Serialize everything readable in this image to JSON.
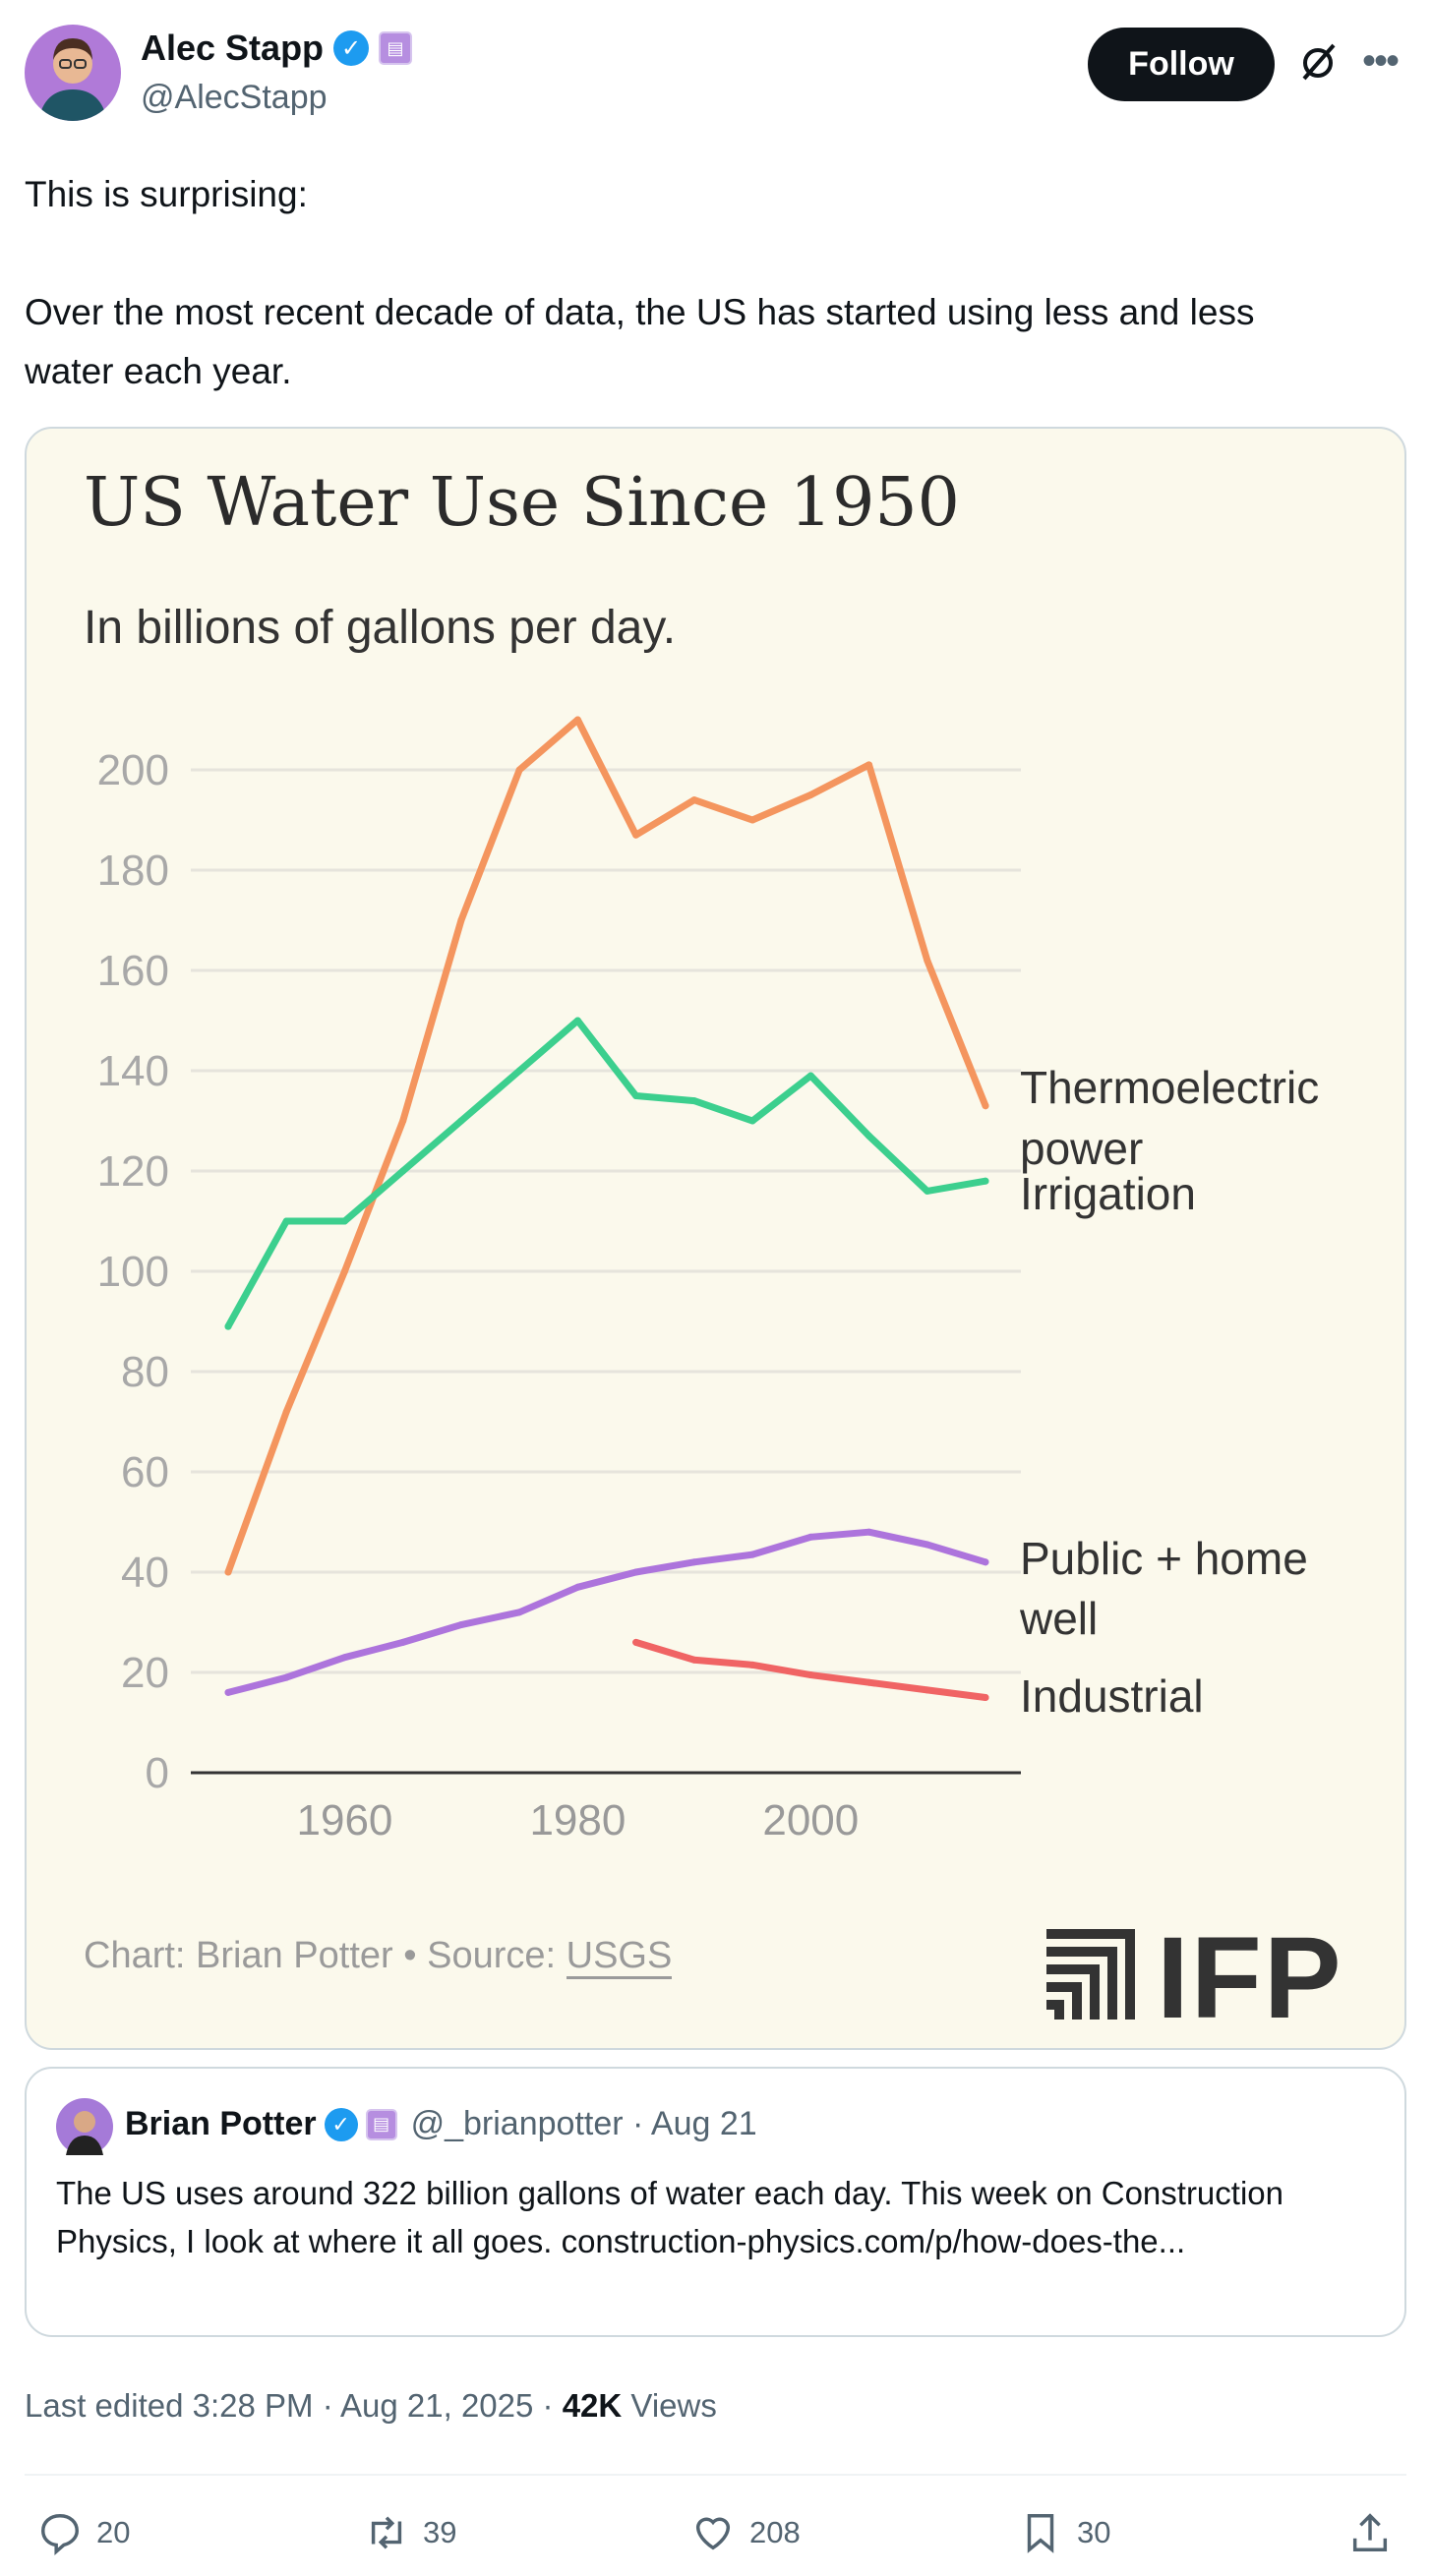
{
  "author": {
    "name": "Alec Stapp",
    "handle": "@AlecStapp",
    "follow_label": "Follow"
  },
  "tweet": {
    "line1": "This is surprising:",
    "line2": "Over the most recent decade of data, the US has started using less and less",
    "line3": "water each year."
  },
  "chart_data": {
    "type": "line",
    "title": "US Water Use Since 1950",
    "subtitle": "In billions of gallons per day.",
    "xlabel": "",
    "ylabel": "",
    "x": [
      1950,
      1955,
      1960,
      1965,
      1970,
      1975,
      1980,
      1985,
      1990,
      1995,
      2000,
      2005,
      2010,
      2015
    ],
    "xticks": [
      1960,
      1980,
      2000
    ],
    "yticks": [
      0,
      20,
      40,
      60,
      80,
      100,
      120,
      140,
      160,
      180,
      200
    ],
    "ylim": [
      0,
      210
    ],
    "xlim": [
      1950,
      2015
    ],
    "grid": true,
    "legend": "right-inline labels",
    "series": [
      {
        "name": "Thermoelectric power",
        "label_lines": [
          "Thermoelectric",
          "power"
        ],
        "color": "#f4955e",
        "values": [
          40,
          72,
          100,
          130,
          170,
          200,
          210,
          187,
          194,
          190,
          195,
          201,
          162,
          133
        ]
      },
      {
        "name": "Irrigation",
        "label_lines": [
          "Irrigation"
        ],
        "color": "#3ccf8e",
        "values": [
          89,
          110,
          110,
          120,
          130,
          140,
          150,
          135,
          134,
          130,
          139,
          127,
          116,
          118
        ]
      },
      {
        "name": "Public + home well",
        "label_lines": [
          "Public + home",
          "well"
        ],
        "color": "#ad74dc",
        "values": [
          16,
          19,
          23,
          26,
          29.5,
          32,
          37,
          40,
          42,
          43.5,
          47,
          48,
          45.5,
          42
        ]
      },
      {
        "name": "Industrial",
        "label_lines": [
          "Industrial"
        ],
        "color": "#f06464",
        "values": [
          null,
          null,
          null,
          null,
          null,
          null,
          null,
          26,
          22.5,
          21.5,
          19.5,
          18,
          16.5,
          15
        ]
      }
    ],
    "source_prefix": "Chart: Brian Potter • Source: ",
    "source_link": "USGS",
    "logo": "IFP"
  },
  "quote": {
    "name": "Brian Potter",
    "handle_date": "@_brianpotter · Aug 21",
    "text": "The US uses around 322 billion gallons of water each day. This week on Construction Physics, I look at where it all goes. construction-physics.com/p/how-does-the..."
  },
  "meta": {
    "edited": "Last edited 3:28 PM · Aug 21, 2025 · ",
    "views_count": "42K",
    "views_label": " Views"
  },
  "actions": {
    "replies": "20",
    "reposts": "39",
    "likes": "208",
    "bookmarks": "30"
  }
}
